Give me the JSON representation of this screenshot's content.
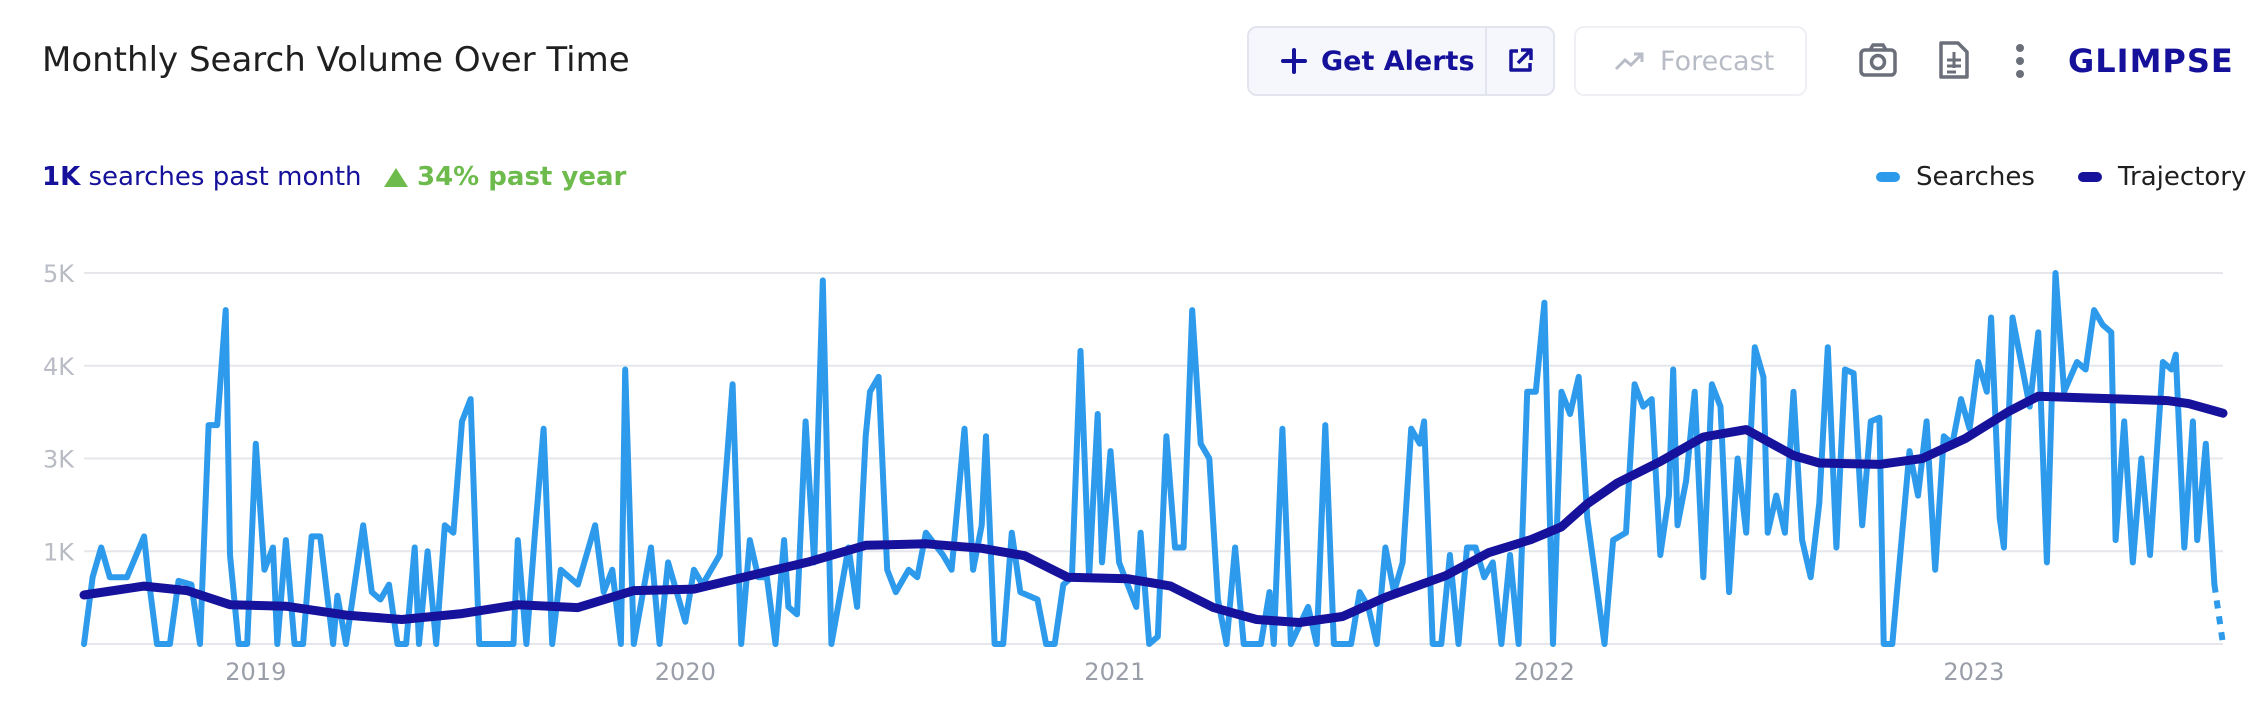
{
  "header": {
    "title": "Monthly Search Volume Over Time",
    "alerts_button": "Get Alerts",
    "forecast_button": "Forecast",
    "logo": "GLIMPSE"
  },
  "stats": {
    "month_value": "1K",
    "month_text": "searches past month",
    "year_change": "34%",
    "year_text": "past year"
  },
  "chart_data": {
    "type": "line",
    "xlim": [
      2018.6,
      2023.58
    ],
    "xticks": [
      2019,
      2020,
      2021,
      2022,
      2023
    ],
    "ylim": [
      0,
      5000
    ],
    "yticks": [
      {
        "value": 1250,
        "label": "1K"
      },
      {
        "value": 2500,
        "label": "3K"
      },
      {
        "value": 3750,
        "label": "4K"
      },
      {
        "value": 5000,
        "label": "5K"
      }
    ],
    "grid": true,
    "legend": "top-right",
    "series": [
      {
        "name": "Searches",
        "color": "#2d9aec",
        "x": [
          2018.6,
          2018.62,
          2018.64,
          2018.66,
          2018.7,
          2018.74,
          2018.75,
          2018.77,
          2018.8,
          2018.82,
          2018.85,
          2018.87,
          2018.89,
          2018.91,
          2018.93,
          2018.94,
          2018.96,
          2018.98,
          2019.0,
          2019.02,
          2019.04,
          2019.05,
          2019.07,
          2019.09,
          2019.11,
          2019.13,
          2019.15,
          2019.18,
          2019.19,
          2019.21,
          2019.25,
          2019.27,
          2019.29,
          2019.31,
          2019.33,
          2019.35,
          2019.37,
          2019.38,
          2019.4,
          2019.42,
          2019.44,
          2019.46,
          2019.48,
          2019.5,
          2019.52,
          2019.6,
          2019.61,
          2019.63,
          2019.65,
          2019.67,
          2019.69,
          2019.71,
          2019.75,
          2019.79,
          2019.81,
          2019.83,
          2019.85,
          2019.86,
          2019.88,
          2019.92,
          2019.94,
          2019.96,
          2020.0,
          2020.02,
          2020.04,
          2020.08,
          2020.11,
          2020.13,
          2020.15,
          2020.17,
          2020.19,
          2020.21,
          2020.23,
          2020.24,
          2020.26,
          2020.28,
          2020.3,
          2020.32,
          2020.34,
          2020.38,
          2020.4,
          2020.42,
          2020.43,
          2020.45,
          2020.47,
          2020.49,
          2020.52,
          2020.54,
          2020.56,
          2020.6,
          2020.62,
          2020.65,
          2020.67,
          2020.69,
          2020.7,
          2020.72,
          2020.74,
          2020.76,
          2020.78,
          2020.82,
          2020.84,
          2020.86,
          2020.88,
          2020.9,
          2020.92,
          2020.94,
          2020.96,
          2020.97,
          2020.99,
          2021.01,
          2021.05,
          2021.06,
          2021.08,
          2021.1,
          2021.12,
          2021.14,
          2021.16,
          2021.18,
          2021.2,
          2021.22,
          2021.24,
          2021.26,
          2021.28,
          2021.3,
          2021.34,
          2021.36,
          2021.37,
          2021.39,
          2021.41,
          2021.45,
          2021.47,
          2021.49,
          2021.51,
          2021.55,
          2021.57,
          2021.59,
          2021.61,
          2021.63,
          2021.65,
          2021.67,
          2021.69,
          2021.71,
          2021.72,
          2021.74,
          2021.76,
          2021.78,
          2021.8,
          2021.82,
          2021.84,
          2021.86,
          2021.88,
          2021.9,
          2021.92,
          2021.94,
          2021.96,
          2021.98,
          2022.0,
          2022.02,
          2022.04,
          2022.06,
          2022.08,
          2022.1,
          2022.14,
          2022.16,
          2022.19,
          2022.21,
          2022.23,
          2022.25,
          2022.27,
          2022.29,
          2022.3,
          2022.31,
          2022.33,
          2022.35,
          2022.37,
          2022.39,
          2022.41,
          2022.43,
          2022.45,
          2022.47,
          2022.49,
          2022.51,
          2022.52,
          2022.54,
          2022.56,
          2022.58,
          2022.6,
          2022.62,
          2022.64,
          2022.66,
          2022.68,
          2022.7,
          2022.72,
          2022.74,
          2022.76,
          2022.78,
          2022.79,
          2022.81,
          2022.83,
          2022.85,
          2022.87,
          2022.89,
          2022.91,
          2022.93,
          2022.95,
          2022.97,
          2022.99,
          2023.01,
          2023.03,
          2023.04,
          2023.06,
          2023.07,
          2023.09,
          2023.11,
          2023.13,
          2023.15,
          2023.17,
          2023.19,
          2023.21,
          2023.24,
          2023.26,
          2023.28,
          2023.3,
          2023.32,
          2023.33,
          2023.35,
          2023.37,
          2023.39,
          2023.41,
          2023.44,
          2023.46,
          2023.47,
          2023.49,
          2023.51,
          2023.52,
          2023.54,
          2023.56,
          2023.58
        ],
        "values": [
          0,
          900,
          1300,
          900,
          900,
          1450,
          900,
          0,
          0,
          850,
          800,
          0,
          2950,
          2950,
          4500,
          1200,
          0,
          0,
          2700,
          1000,
          1300,
          0,
          1400,
          0,
          0,
          1450,
          1450,
          0,
          650,
          0,
          1600,
          700,
          600,
          800,
          0,
          0,
          1300,
          0,
          1250,
          0,
          1600,
          1500,
          3000,
          3300,
          0,
          0,
          1400,
          0,
          1500,
          2900,
          0,
          1000,
          800,
          1600,
          700,
          1000,
          0,
          3700,
          0,
          1300,
          0,
          1100,
          300,
          1000,
          800,
          1200,
          3500,
          0,
          1400,
          900,
          900,
          0,
          1400,
          500,
          400,
          3000,
          1100,
          4900,
          0,
          1300,
          500,
          2800,
          3400,
          3600,
          1000,
          700,
          1000,
          900,
          1500,
          1200,
          1000,
          2900,
          1000,
          1600,
          2800,
          0,
          0,
          1500,
          700,
          600,
          0,
          0,
          800,
          900,
          3950,
          900,
          3100,
          1100,
          2600,
          1100,
          500,
          1500,
          0,
          100,
          2800,
          1300,
          1300,
          4500,
          2700,
          2500,
          600,
          0,
          1300,
          0,
          0,
          700,
          0,
          2900,
          0,
          500,
          0,
          2950,
          0,
          0,
          700,
          500,
          0,
          1300,
          700,
          1100,
          2900,
          2700,
          3000,
          0,
          0,
          1200,
          0,
          1300,
          1300,
          900,
          1100,
          0,
          1200,
          0,
          3400,
          3400,
          4600,
          0,
          3400,
          3100,
          3600,
          1700,
          0,
          1400,
          1500,
          3500,
          3200,
          3300,
          1200,
          2000,
          3700,
          1600,
          2200,
          3400,
          900,
          3500,
          3200,
          700,
          2500,
          1500,
          4000,
          3600,
          1500,
          2000,
          1500,
          3400,
          1400,
          900,
          1900,
          4000,
          1300,
          3700,
          3650,
          1600,
          3000,
          3050,
          0,
          0,
          1300,
          2600,
          2000,
          3000,
          1000,
          2800,
          2700,
          3300,
          2900,
          3800,
          3400,
          4400,
          1700,
          1300,
          4400,
          3800,
          3200,
          4200,
          1100,
          5000,
          3400,
          3800,
          3700,
          4500,
          4300,
          4200,
          1400,
          3000,
          1100,
          2500,
          1200,
          3800,
          3700,
          3900,
          1300,
          3000,
          1400,
          2700,
          800,
          0
        ]
      },
      {
        "name": "Trajectory",
        "color": "#17129c",
        "x": [
          2018.6,
          2018.74,
          2018.84,
          2018.94,
          2019.07,
          2019.21,
          2019.34,
          2019.48,
          2019.61,
          2019.75,
          2019.88,
          2020.02,
          2020.15,
          2020.29,
          2020.42,
          2020.56,
          2020.69,
          2020.79,
          2020.89,
          2021.03,
          2021.13,
          2021.23,
          2021.33,
          2021.43,
          2021.53,
          2021.63,
          2021.77,
          2021.87,
          2021.97,
          2022.04,
          2022.1,
          2022.17,
          2022.27,
          2022.37,
          2022.47,
          2022.58,
          2022.64,
          2022.78,
          2022.88,
          2022.98,
          2023.08,
          2023.15,
          2023.25,
          2023.35,
          2023.45,
          2023.5,
          2023.58
        ],
        "values": [
          660,
          780,
          720,
          530,
          510,
          390,
          330,
          410,
          530,
          490,
          720,
          740,
          920,
          1110,
          1330,
          1350,
          1290,
          1190,
          900,
          880,
          780,
          490,
          330,
          290,
          370,
          630,
          920,
          1230,
          1410,
          1580,
          1890,
          2170,
          2460,
          2790,
          2890,
          2540,
          2440,
          2420,
          2500,
          2770,
          3130,
          3340,
          3320,
          3300,
          3280,
          3240,
          3110
        ]
      }
    ]
  }
}
